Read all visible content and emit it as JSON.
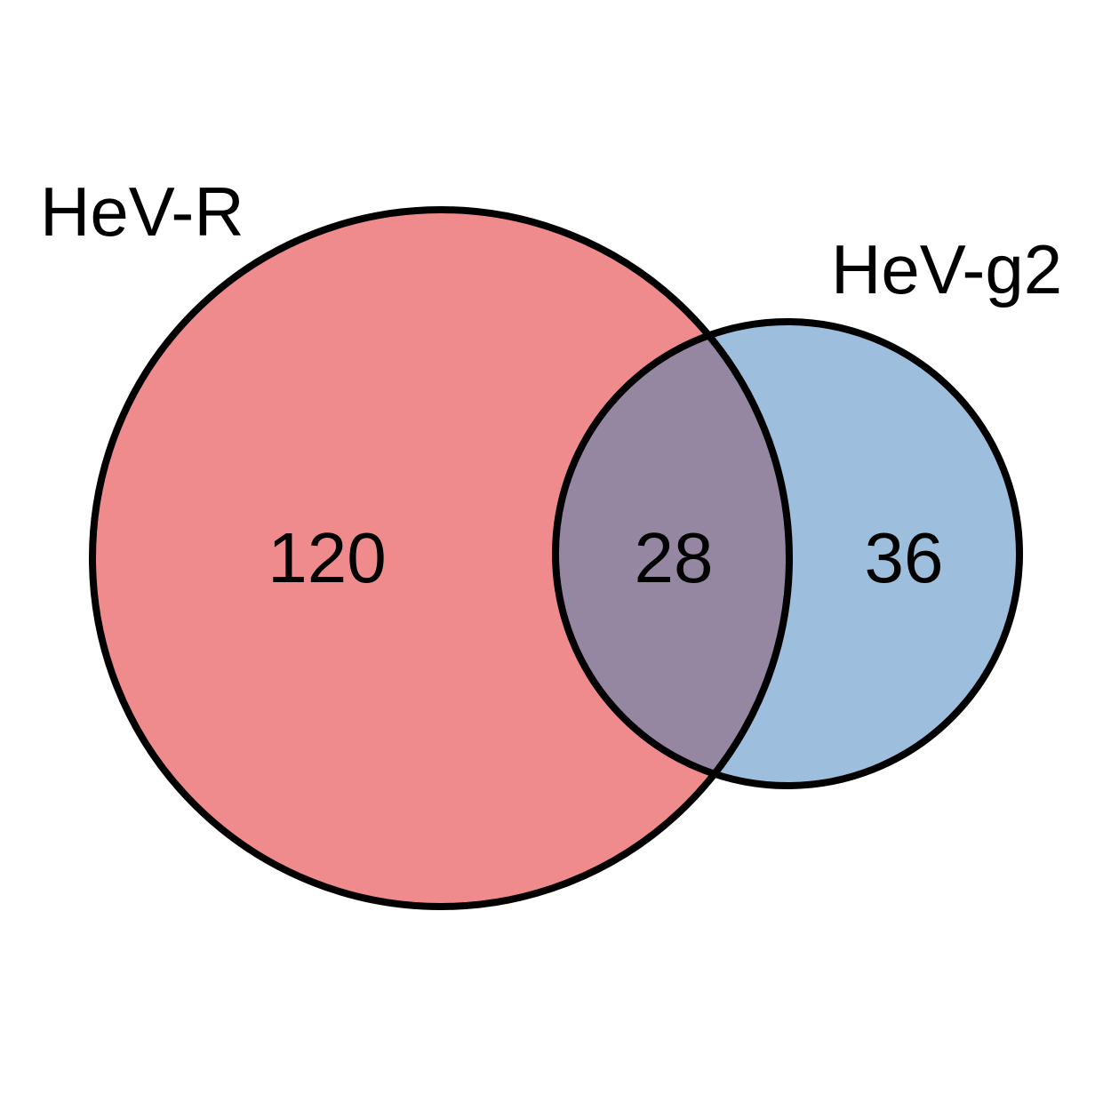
{
  "diagram": {
    "type": "venn",
    "sets": [
      {
        "name": "HeV-R",
        "color": "#F08B8D"
      },
      {
        "name": "HeV-g2",
        "color": "#9DBEDC"
      }
    ],
    "overlap_color": "#9587A2",
    "outline_color": "#000000",
    "regions": {
      "only_a": "120",
      "intersection": "28",
      "only_b": "36"
    }
  }
}
